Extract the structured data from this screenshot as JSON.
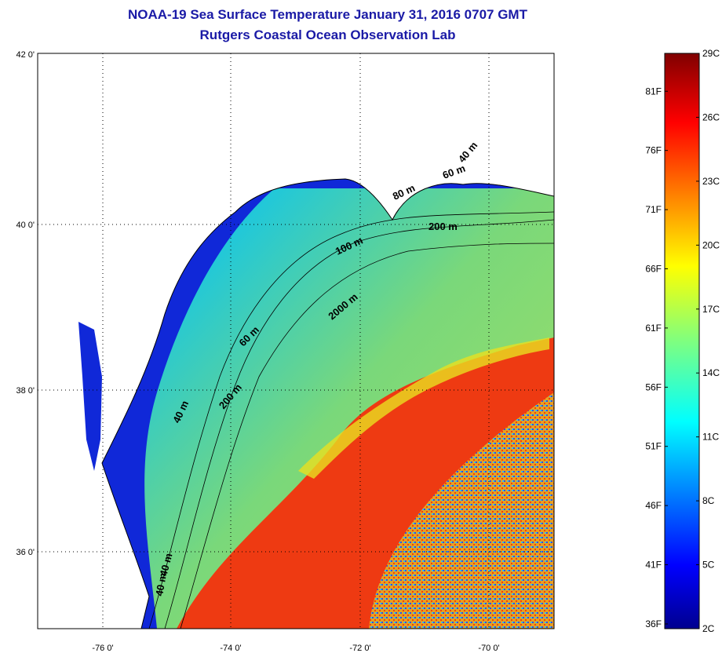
{
  "title": {
    "line1": "NOAA-19 Sea Surface Temperature January 31, 2016 0707 GMT",
    "line2": "Rutgers Coastal Ocean Observation Lab"
  },
  "map": {
    "lat_labels": [
      "42 0'",
      "40 0'",
      "38 0'",
      "36 0'"
    ],
    "lon_labels": [
      "-76 0'",
      "-74 0'",
      "-72 0'",
      "-70 0'"
    ],
    "depth_contours": [
      "40 m",
      "60 m",
      "80 m",
      "200 m",
      "100 m",
      "60 m",
      "2000 m",
      "40 m",
      "200 m",
      "40 m",
      "40 m"
    ]
  },
  "colorbar": {
    "fahrenheit_labels": [
      "81F",
      "76F",
      "71F",
      "66F",
      "61F",
      "56F",
      "51F",
      "46F",
      "41F",
      "36F"
    ],
    "celsius_labels": [
      "29C",
      "26C",
      "23C",
      "20C",
      "17C",
      "14C",
      "11C",
      "8C",
      "5C",
      "2C"
    ],
    "range_c": [
      2,
      29
    ]
  },
  "colors": {
    "title": "#1a1aa6",
    "land": "#ffffff",
    "cold": "#00008f",
    "warm": "#800000"
  }
}
